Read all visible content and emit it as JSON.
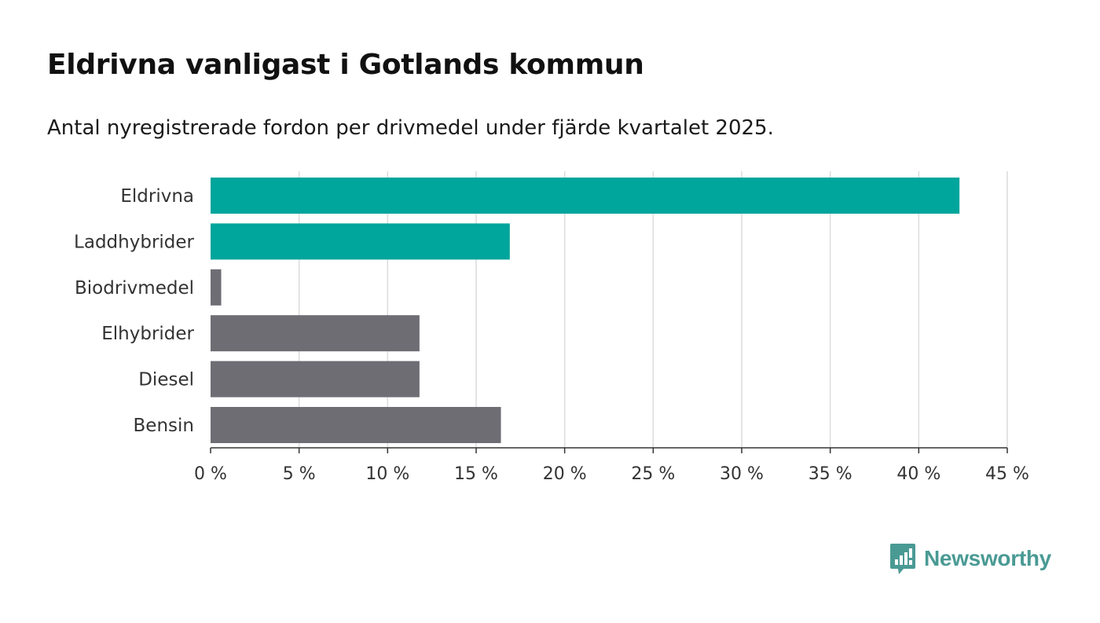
{
  "header": {
    "title": "Eldrivna vanligast i Gotlands kommun",
    "subtitle": "Antal nyregistrerade fordon per drivmedel under fjärde kvartalet 2025."
  },
  "brand": {
    "name": "Newsworthy",
    "icon": "newsworthy-logo-icon",
    "color": "#4a9a94"
  },
  "chart_data": {
    "type": "bar",
    "orientation": "horizontal",
    "title": "Eldrivna vanligast i Gotlands kommun",
    "subtitle": "Antal nyregistrerade fordon per drivmedel under fjärde kvartalet 2025.",
    "categories": [
      "Eldrivna",
      "Laddhybrider",
      "Biodrivmedel",
      "Elhybrider",
      "Diesel",
      "Bensin"
    ],
    "values": [
      42.3,
      16.9,
      0.6,
      11.8,
      11.8,
      16.4
    ],
    "highlight": [
      true,
      true,
      false,
      false,
      false,
      false
    ],
    "colors": {
      "highlight": "#00a59c",
      "default": "#6e6d74"
    },
    "xlim": [
      0,
      45
    ],
    "xticks": [
      0,
      5,
      10,
      15,
      20,
      25,
      30,
      35,
      40,
      45
    ],
    "xtick_labels": [
      "0 %",
      "5 %",
      "10 %",
      "15 %",
      "20 %",
      "25 %",
      "30 %",
      "35 %",
      "40 %",
      "45 %"
    ],
    "xlabel": "",
    "ylabel": "",
    "grid": true
  }
}
